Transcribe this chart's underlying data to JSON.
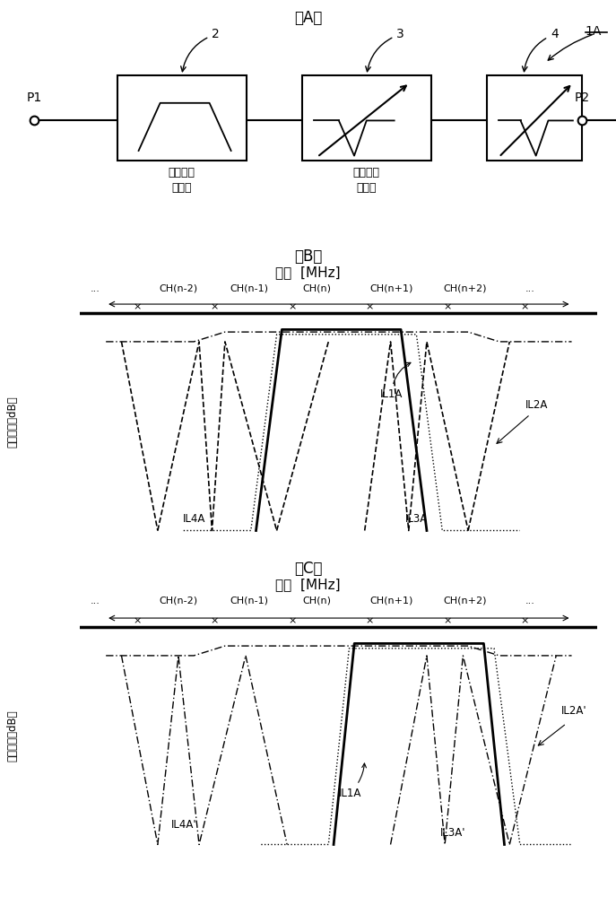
{
  "title_A": "（A）",
  "title_B": "（B）",
  "title_C": "（C）",
  "freq_label": "频率  [MHz]",
  "y_label": "插入损耗［dB］",
  "ch_labels": [
    "CH(n-2)",
    "CH(n-1)",
    "CH(n)",
    "CH(n+1)",
    "CH(n+2)"
  ],
  "label_P1": "P1",
  "label_P2": "P2",
  "label_1A": "1A",
  "label_2": "2",
  "label_3": "3",
  "label_4": "4",
  "box1_label1": "宽频带通",
  "box1_label2": "滤波器",
  "box2_label1": "可变带阻",
  "box2_label2": "滤波器",
  "IL1A_b": "IL1A",
  "IL2A_b": "IL2A",
  "IL3A_b": "IL3A",
  "IL4A_b": "IL4A",
  "IL1A_c": "IL1A",
  "IL2A_c": "IL2A'",
  "IL3A_c": "IL3A'",
  "IL4A_c": "IL4A'",
  "bg_color": "#ffffff"
}
